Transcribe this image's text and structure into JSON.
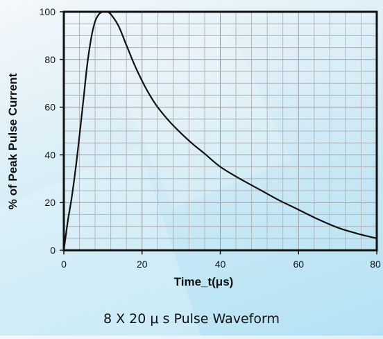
{
  "chart_data": {
    "type": "line",
    "title": "8 X 20 μ s Pulse Waveform",
    "xlabel": "Time_t(μs)",
    "ylabel": "% of Peak Pulse Current",
    "xlim": [
      0,
      80
    ],
    "ylim": [
      0,
      100
    ],
    "xticks": [
      0,
      20,
      40,
      60,
      80
    ],
    "yticks": [
      0,
      20,
      40,
      60,
      80,
      100
    ],
    "grid": true,
    "legend": "none",
    "x": [
      0,
      1,
      2,
      3,
      4,
      5,
      6,
      7,
      8,
      9,
      10,
      11,
      12,
      14,
      16,
      18,
      20,
      22,
      24,
      27,
      30,
      33,
      36,
      40,
      45,
      50,
      55,
      60,
      65,
      70,
      75,
      80
    ],
    "y": [
      0,
      12,
      22,
      34,
      48,
      63,
      78,
      89,
      96,
      99,
      100,
      100,
      99,
      94,
      86,
      78,
      71,
      65,
      60,
      54,
      49,
      44.5,
      40.5,
      35,
      30,
      25.5,
      21,
      17,
      13,
      9.5,
      7,
      5
    ]
  }
}
